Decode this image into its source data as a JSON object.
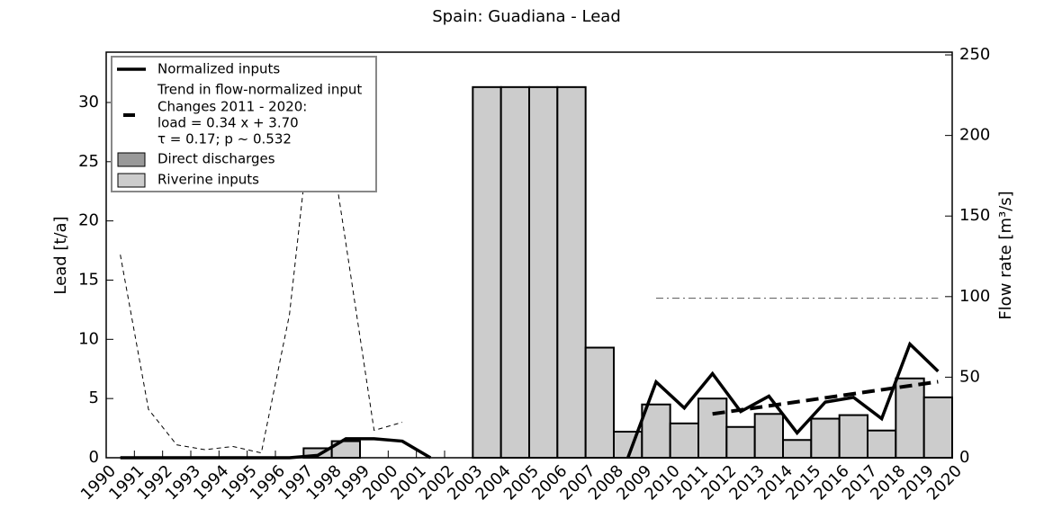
{
  "chart_data": {
    "type": "bar",
    "title": "Spain: Guadiana - Lead",
    "y_label": "Lead [t/a]",
    "y2_label": "Flow rate [m³/s]",
    "xlim": [
      1990,
      2020
    ],
    "xticks": [
      1990,
      1991,
      1992,
      1993,
      1994,
      1995,
      1996,
      1997,
      1998,
      1999,
      2000,
      2001,
      2002,
      2003,
      2004,
      2005,
      2006,
      2007,
      2008,
      2009,
      2010,
      2011,
      2012,
      2013,
      2014,
      2015,
      2016,
      2017,
      2018,
      2019,
      2020
    ],
    "ylim": [
      0,
      34.25
    ],
    "yticks": [
      0,
      5,
      10,
      15,
      20,
      25,
      30
    ],
    "y2lim": [
      0,
      251.7
    ],
    "y2ticks": [
      0,
      50,
      100,
      150,
      200,
      250
    ],
    "legend_notes": [
      "Changes 2011 - 2020:",
      "load =  0.34 x +  3.70",
      "τ =  0.17; p ~ 0.532"
    ],
    "series": [
      {
        "name": "Normalized inputs",
        "type": "line",
        "style": "solid",
        "color": "#000000",
        "x": [
          1990.5,
          1991.5,
          1992.5,
          1993.5,
          1994.5,
          1995.5,
          1996.5,
          1997.5,
          1998.5,
          1999.5,
          2000.5,
          2001.5,
          2002.5,
          2003.5,
          2004.5,
          2005.5,
          2006.5,
          2007.5,
          2008.5,
          2009.5,
          2010.5,
          2011.5,
          2012.5,
          2013.5,
          2014.5,
          2015.5,
          2016.5,
          2017.5,
          2018.5,
          2019.5
        ],
        "values": [
          0,
          0,
          0,
          0,
          0,
          0,
          0,
          0.2,
          1.6,
          1.6,
          1.4,
          0,
          null,
          null,
          null,
          null,
          null,
          null,
          0,
          6.4,
          4.2,
          7.1,
          3.9,
          5.2,
          2.1,
          4.7,
          5.1,
          3.3,
          9.6,
          7.3
        ]
      },
      {
        "name": "Trend in flow-normalized input",
        "type": "line",
        "style": "dashed",
        "color": "#000000",
        "x": [
          2011.5,
          2019.5
        ],
        "values": [
          3.7,
          6.42
        ]
      },
      {
        "name": "Direct discharges",
        "type": "bar",
        "color": "#999999",
        "x": [],
        "values": []
      },
      {
        "name": "Riverine inputs",
        "type": "bar",
        "color": "#cccccc",
        "x": [
          1990,
          1991,
          1992,
          1993,
          1994,
          1995,
          1996,
          1997,
          1998,
          1999,
          2000,
          2001,
          2002,
          2003,
          2004,
          2005,
          2006,
          2007,
          2008,
          2009,
          2010,
          2011,
          2012,
          2013,
          2014,
          2015,
          2016,
          2017,
          2018,
          2019
        ],
        "values": [
          null,
          null,
          null,
          null,
          null,
          null,
          null,
          0.8,
          1.4,
          null,
          null,
          null,
          null,
          31.3,
          31.3,
          31.3,
          31.3,
          9.3,
          2.2,
          4.5,
          2.9,
          5.0,
          2.6,
          3.7,
          1.5,
          3.3,
          3.6,
          2.3,
          6.7,
          5.1
        ]
      },
      {
        "type": "line",
        "style": "thin-dashed",
        "color": "#000000",
        "axis": "y2",
        "x": [
          1990.5,
          1991.5,
          1992.5,
          1993.5,
          1994.5,
          1995.5,
          1996.5,
          1997.5,
          1998.5,
          1999.5,
          2000.5
        ],
        "values": [
          126,
          30,
          8,
          5,
          7,
          3,
          89,
          248,
          133,
          17,
          22
        ]
      },
      {
        "type": "line",
        "style": "dashdot",
        "color": "#555555",
        "axis": "y2",
        "x": [
          2009.5,
          2019.5
        ],
        "values": [
          99,
          99
        ]
      }
    ]
  }
}
